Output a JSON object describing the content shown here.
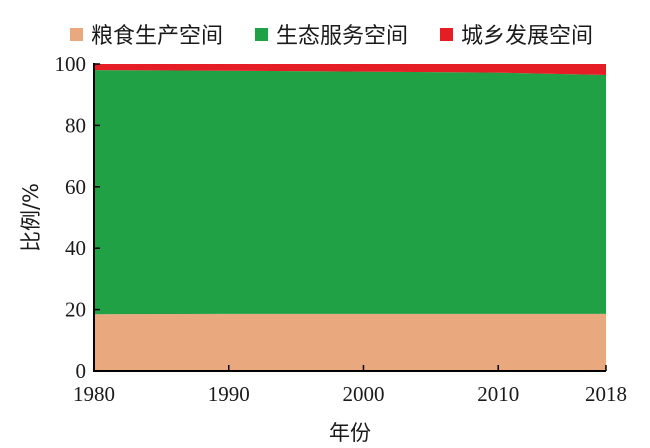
{
  "chart_data": {
    "type": "area",
    "stacked": true,
    "x": [
      1980,
      1990,
      2000,
      2010,
      2018
    ],
    "xlabel": "年份",
    "ylabel": "比例/%",
    "xlim": [
      1980,
      2018
    ],
    "ylim": [
      0,
      100
    ],
    "xticks": [
      "1980",
      "1990",
      "2000",
      "2010",
      "2018"
    ],
    "yticks": [
      "0",
      "20",
      "40",
      "60",
      "80",
      "100"
    ],
    "grid": false,
    "legend_position": "top",
    "series": [
      {
        "name": "粮食生产空间",
        "color": "#eaa87e",
        "values": [
          18.5,
          18.6,
          18.6,
          18.6,
          18.6
        ]
      },
      {
        "name": "生态服务空间",
        "color": "#21a145",
        "values": [
          79.5,
          79.2,
          78.9,
          78.6,
          77.8
        ]
      },
      {
        "name": "城乡发展空间",
        "color": "#e51d24",
        "values": [
          2.0,
          2.2,
          2.5,
          2.8,
          3.6
        ]
      }
    ]
  }
}
